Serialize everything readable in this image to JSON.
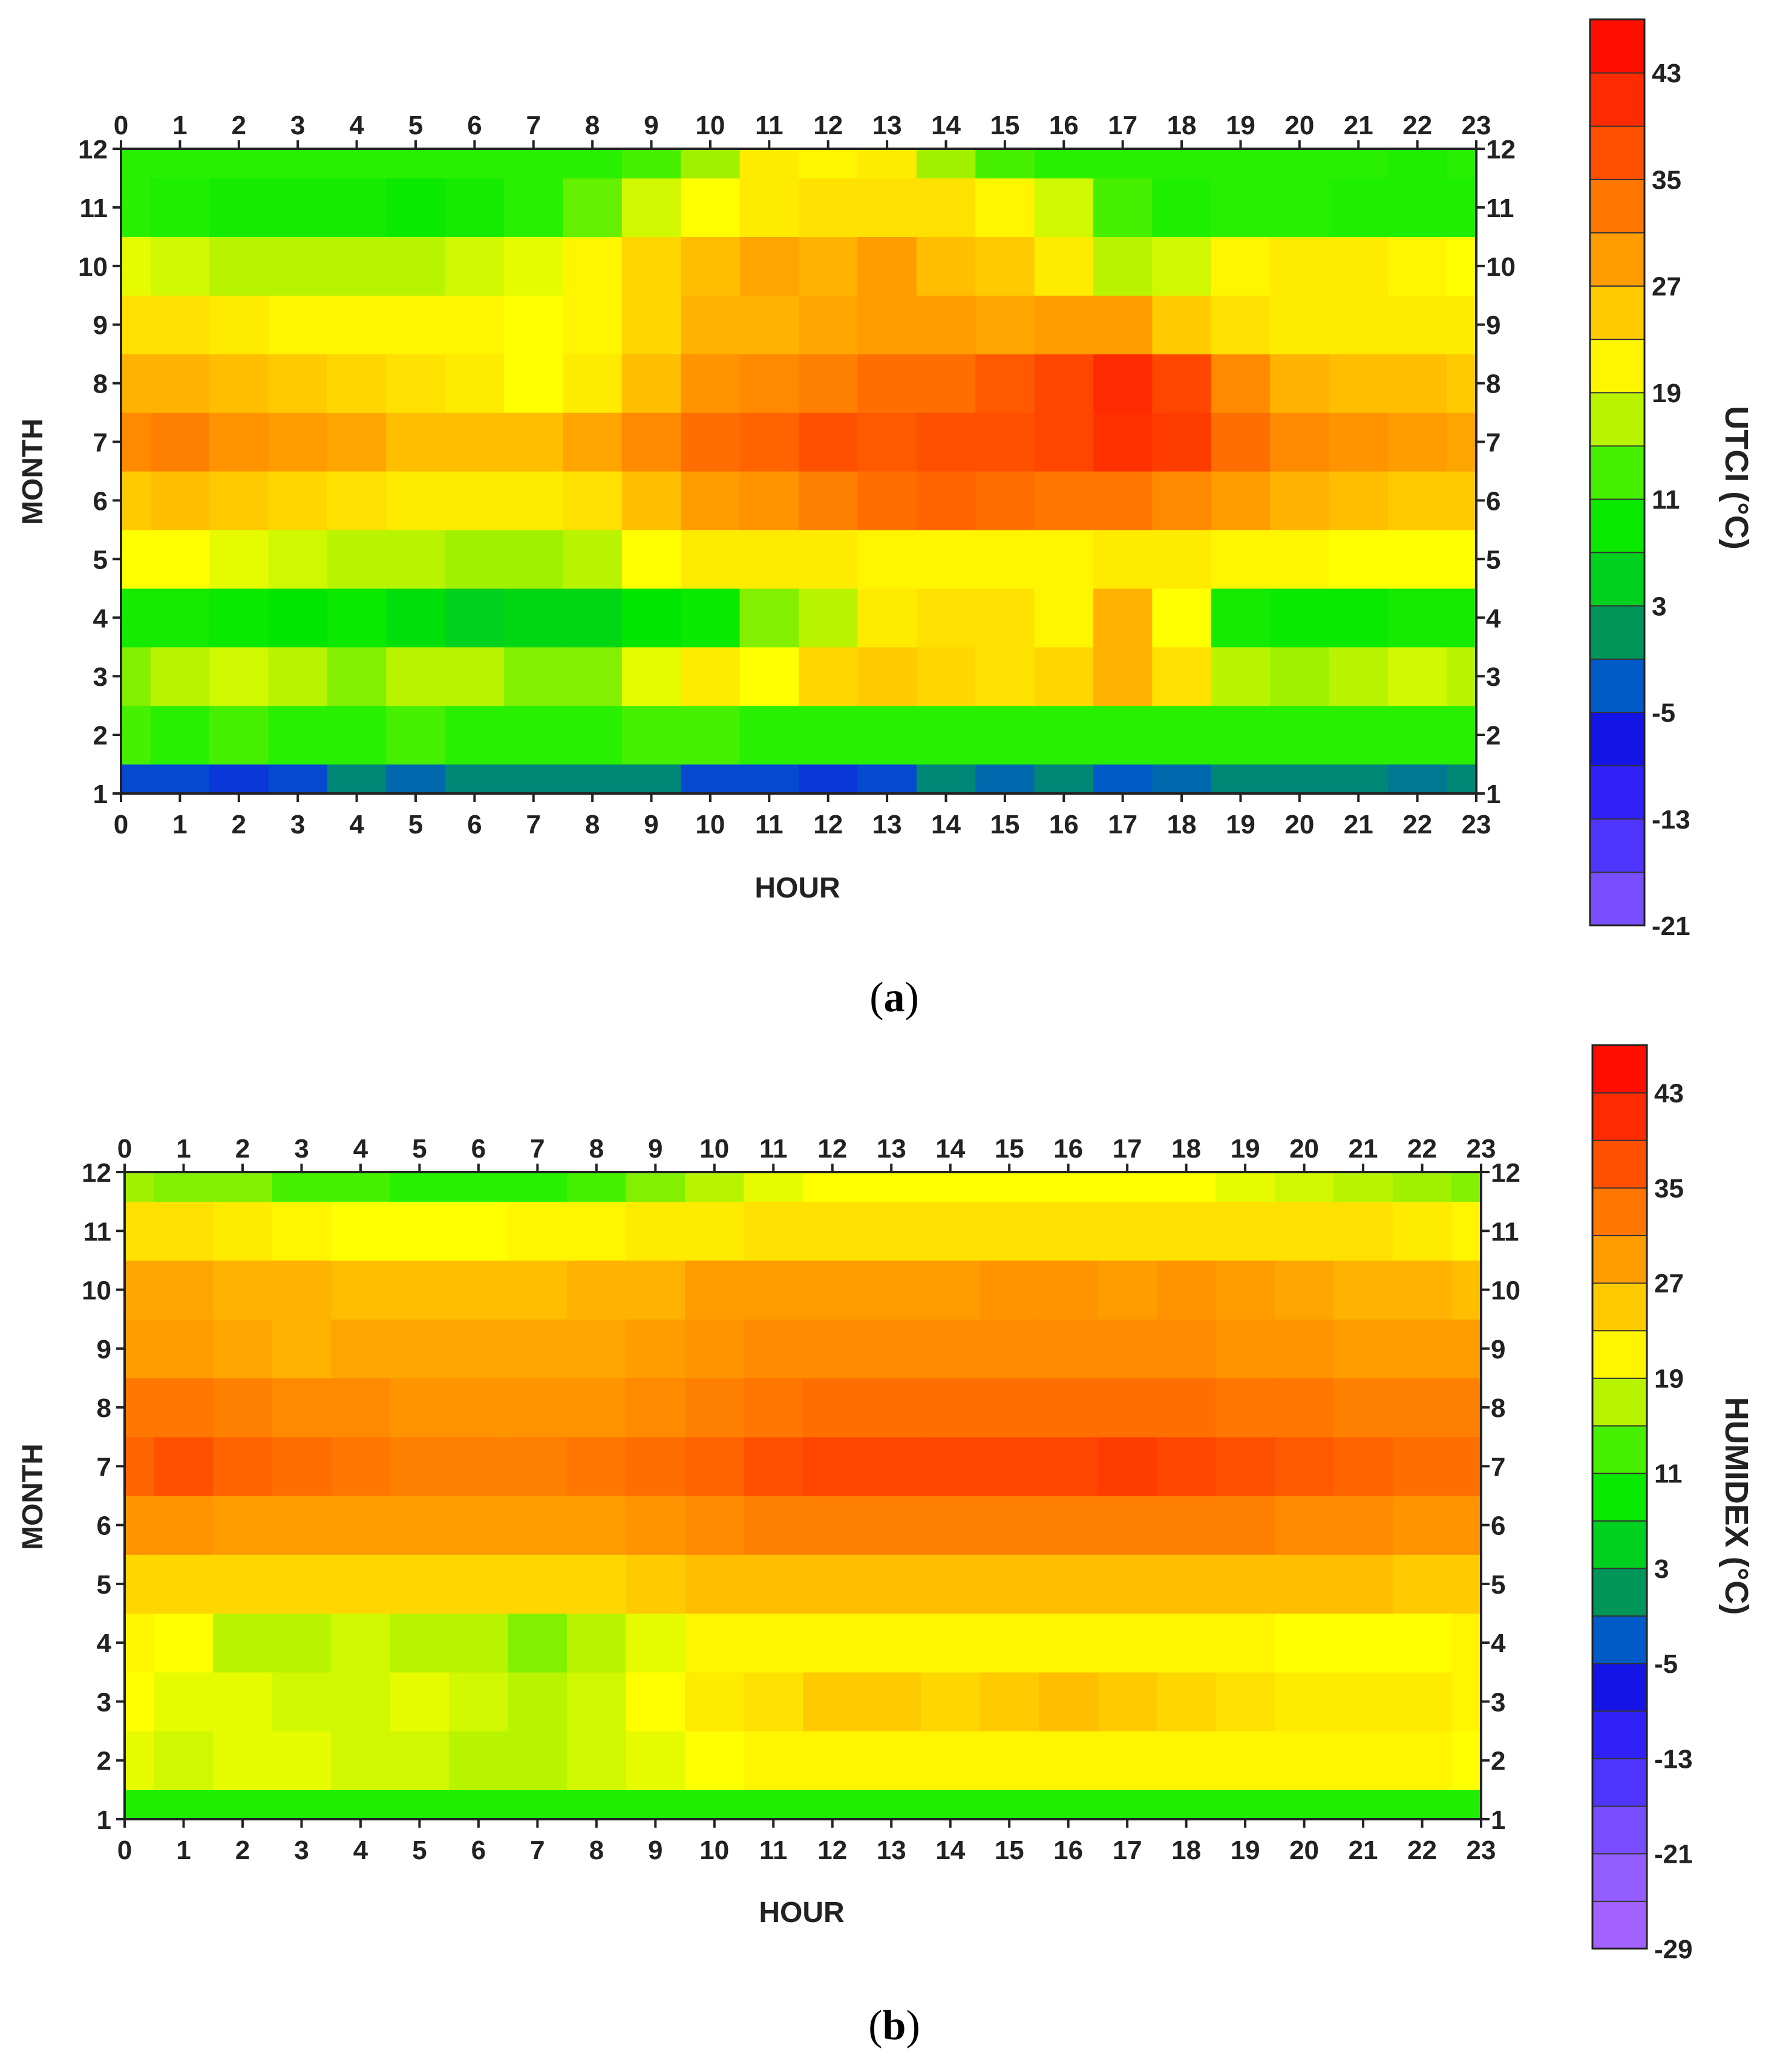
{
  "chart_data": [
    {
      "type": "heatmap",
      "panel_label": "a",
      "xlabel": "HOUR",
      "ylabel": "MONTH",
      "colorbar_label": "UTCI (°C)",
      "x": [
        0,
        1,
        2,
        3,
        4,
        5,
        6,
        7,
        8,
        9,
        10,
        11,
        12,
        13,
        14,
        15,
        16,
        17,
        18,
        19,
        20,
        21,
        22,
        23
      ],
      "y": [
        1,
        2,
        3,
        4,
        5,
        6,
        7,
        8,
        9,
        10,
        11,
        12
      ],
      "xlim": [
        0,
        23
      ],
      "ylim": [
        1,
        12
      ],
      "colorbar_range": [
        -21,
        47
      ],
      "colorbar_step": 4,
      "colorbar_ticks": [
        43,
        35,
        27,
        19,
        11,
        3,
        -5,
        -13,
        -21
      ],
      "z": [
        [
          -4,
          -4,
          -5,
          -4,
          0,
          -2,
          0,
          0,
          0,
          0,
          -4,
          -4,
          -5,
          -4,
          0,
          -2,
          0,
          -3,
          -2,
          0,
          0,
          0,
          -1,
          0
        ],
        [
          13,
          12,
          13,
          12,
          12,
          13,
          12,
          12,
          12,
          13,
          13,
          12,
          12,
          12,
          12,
          12,
          12,
          12,
          12,
          12,
          12,
          12,
          12,
          12
        ],
        [
          15,
          17,
          18,
          17,
          15,
          17,
          17,
          15,
          15,
          19,
          22,
          20,
          24,
          25,
          24,
          23,
          24,
          27,
          23,
          17,
          16,
          17,
          18,
          17
        ],
        [
          10,
          10,
          9,
          8,
          9,
          7,
          5,
          6,
          6,
          8,
          9,
          15,
          17,
          22,
          23,
          23,
          21,
          27,
          20,
          10,
          9,
          9,
          10,
          10
        ],
        [
          20,
          20,
          19,
          18,
          17,
          17,
          16,
          16,
          17,
          20,
          22,
          22,
          22,
          21,
          21,
          21,
          21,
          22,
          22,
          21,
          21,
          20,
          20,
          20
        ],
        [
          25,
          26,
          25,
          24,
          23,
          22,
          22,
          22,
          23,
          26,
          29,
          30,
          32,
          34,
          35,
          34,
          33,
          33,
          31,
          29,
          27,
          26,
          25,
          25
        ],
        [
          31,
          32,
          30,
          29,
          28,
          26,
          26,
          26,
          28,
          31,
          34,
          35,
          37,
          36,
          37,
          37,
          38,
          40,
          39,
          34,
          31,
          30,
          29,
          28
        ],
        [
          27,
          27,
          26,
          25,
          24,
          23,
          22,
          20,
          22,
          26,
          30,
          31,
          32,
          34,
          34,
          36,
          38,
          41,
          38,
          31,
          27,
          26,
          26,
          25
        ],
        [
          23,
          23,
          22,
          21,
          21,
          21,
          21,
          20,
          21,
          24,
          27,
          27,
          28,
          29,
          29,
          28,
          29,
          29,
          25,
          23,
          22,
          22,
          22,
          22
        ],
        [
          19,
          18,
          17,
          17,
          17,
          17,
          18,
          19,
          21,
          24,
          26,
          28,
          27,
          29,
          26,
          25,
          22,
          17,
          18,
          21,
          22,
          22,
          21,
          20
        ],
        [
          12,
          11,
          10,
          10,
          10,
          9,
          10,
          12,
          14,
          18,
          20,
          22,
          23,
          23,
          23,
          21,
          18,
          13,
          11,
          12,
          12,
          11,
          11,
          11
        ],
        [
          12,
          12,
          12,
          12,
          12,
          12,
          12,
          12,
          12,
          13,
          16,
          22,
          21,
          22,
          16,
          13,
          12,
          12,
          12,
          12,
          12,
          12,
          11,
          12
        ]
      ]
    },
    {
      "type": "heatmap",
      "panel_label": "b",
      "xlabel": "HOUR",
      "ylabel": "MONTH",
      "colorbar_label": "HUMIDEX (°C)",
      "x": [
        0,
        1,
        2,
        3,
        4,
        5,
        6,
        7,
        8,
        9,
        10,
        11,
        12,
        13,
        14,
        15,
        16,
        17,
        18,
        19,
        20,
        21,
        22,
        23
      ],
      "y": [
        1,
        2,
        3,
        4,
        5,
        6,
        7,
        8,
        9,
        10,
        11,
        12
      ],
      "xlim": [
        0,
        23
      ],
      "ylim": [
        1,
        12
      ],
      "colorbar_range": [
        -29,
        47
      ],
      "colorbar_step": 4,
      "colorbar_ticks": [
        43,
        35,
        27,
        19,
        11,
        3,
        -5,
        -13,
        -21,
        -29
      ],
      "z": [
        [
          11,
          11,
          11,
          11,
          11,
          11,
          11,
          11,
          11,
          11,
          11,
          11,
          11,
          11,
          11,
          11,
          11,
          11,
          11,
          11,
          11,
          11,
          11,
          11
        ],
        [
          19,
          18,
          19,
          19,
          18,
          18,
          17,
          17,
          18,
          19,
          20,
          21,
          21,
          21,
          21,
          21,
          21,
          21,
          21,
          21,
          21,
          21,
          21,
          20
        ],
        [
          20,
          19,
          19,
          18,
          18,
          19,
          18,
          17,
          18,
          20,
          22,
          23,
          25,
          25,
          24,
          25,
          26,
          25,
          24,
          23,
          22,
          22,
          22,
          21
        ],
        [
          21,
          20,
          17,
          17,
          18,
          17,
          17,
          15,
          17,
          19,
          21,
          21,
          21,
          21,
          21,
          21,
          21,
          21,
          21,
          21,
          20,
          20,
          20,
          21
        ],
        [
          24,
          24,
          24,
          24,
          24,
          24,
          24,
          24,
          24,
          25,
          26,
          26,
          26,
          26,
          26,
          26,
          26,
          26,
          26,
          26,
          26,
          26,
          25,
          25
        ],
        [
          30,
          30,
          29,
          29,
          29,
          29,
          29,
          29,
          29,
          30,
          31,
          32,
          32,
          32,
          32,
          32,
          32,
          32,
          32,
          32,
          31,
          31,
          30,
          30
        ],
        [
          35,
          37,
          35,
          34,
          33,
          32,
          32,
          32,
          33,
          34,
          35,
          37,
          38,
          38,
          38,
          38,
          38,
          39,
          38,
          37,
          36,
          35,
          34,
          34
        ],
        [
          33,
          33,
          32,
          31,
          31,
          30,
          30,
          30,
          30,
          31,
          32,
          33,
          34,
          34,
          34,
          34,
          34,
          34,
          34,
          33,
          33,
          32,
          32,
          32
        ],
        [
          29,
          29,
          28,
          27,
          28,
          28,
          28,
          28,
          28,
          29,
          30,
          31,
          31,
          31,
          31,
          31,
          31,
          31,
          31,
          30,
          30,
          29,
          29,
          29
        ],
        [
          28,
          28,
          27,
          27,
          26,
          26,
          26,
          26,
          27,
          27,
          29,
          29,
          29,
          29,
          29,
          30,
          30,
          29,
          30,
          29,
          28,
          27,
          27,
          26
        ],
        [
          23,
          23,
          22,
          21,
          20,
          20,
          20,
          21,
          21,
          22,
          22,
          23,
          23,
          23,
          23,
          23,
          23,
          23,
          23,
          23,
          23,
          23,
          22,
          21
        ],
        [
          16,
          15,
          15,
          13,
          13,
          12,
          12,
          12,
          13,
          15,
          17,
          19,
          20,
          20,
          20,
          20,
          20,
          20,
          20,
          19,
          18,
          17,
          16,
          15
        ]
      ]
    }
  ]
}
